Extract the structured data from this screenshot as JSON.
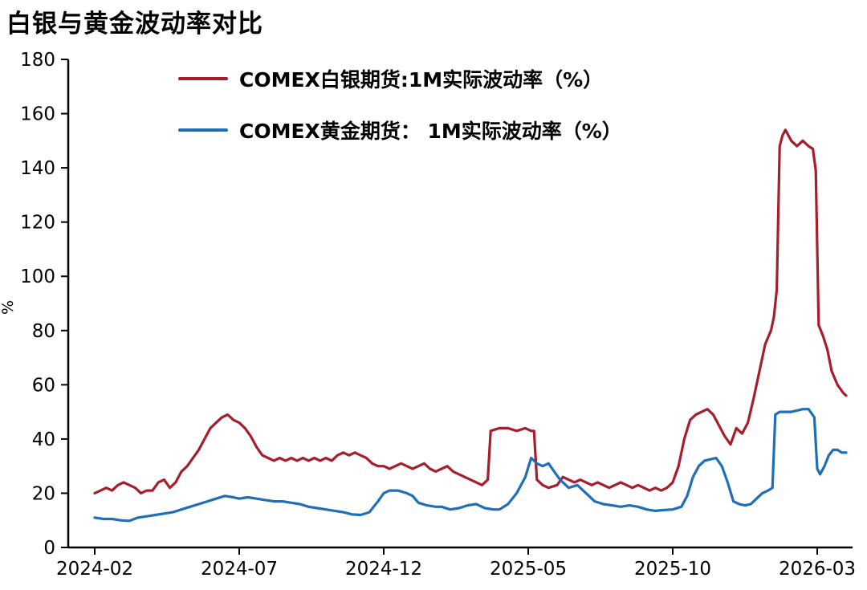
{
  "page": {
    "title": "白银与黄金波动率对比",
    "ylabel": "%"
  },
  "chart_data": {
    "type": "line",
    "title": "白银与黄金波动率对比",
    "xlabel": "",
    "ylabel": "%",
    "ylim": [
      0,
      180
    ],
    "y_ticks": [
      0,
      20,
      40,
      60,
      80,
      100,
      120,
      140,
      160,
      180
    ],
    "x_unit": "months since 2024-02",
    "x_ticks": [
      {
        "m": 0,
        "label": "2024-02"
      },
      {
        "m": 5,
        "label": "2024-07"
      },
      {
        "m": 10,
        "label": "2024-12"
      },
      {
        "m": 15,
        "label": "2025-05"
      },
      {
        "m": 20,
        "label": "2025-10"
      },
      {
        "m": 25,
        "label": "2026-03"
      }
    ],
    "grid": false,
    "legend_position": "top-left-inside",
    "series": [
      {
        "name": "COMEX白银期货:1M实际波动率（%）",
        "color": "#A61E2B",
        "points": [
          [
            0,
            20
          ],
          [
            0.2,
            21
          ],
          [
            0.4,
            22
          ],
          [
            0.6,
            21
          ],
          [
            0.8,
            23
          ],
          [
            1.0,
            24
          ],
          [
            1.2,
            23
          ],
          [
            1.4,
            22
          ],
          [
            1.6,
            20
          ],
          [
            1.8,
            21
          ],
          [
            2.0,
            21
          ],
          [
            2.2,
            24
          ],
          [
            2.4,
            25
          ],
          [
            2.6,
            22
          ],
          [
            2.8,
            24
          ],
          [
            3.0,
            28
          ],
          [
            3.2,
            30
          ],
          [
            3.4,
            33
          ],
          [
            3.6,
            36
          ],
          [
            3.8,
            40
          ],
          [
            4.0,
            44
          ],
          [
            4.2,
            46
          ],
          [
            4.4,
            48
          ],
          [
            4.6,
            49
          ],
          [
            4.8,
            47
          ],
          [
            5.0,
            46
          ],
          [
            5.2,
            44
          ],
          [
            5.4,
            41
          ],
          [
            5.6,
            37
          ],
          [
            5.8,
            34
          ],
          [
            6.0,
            33
          ],
          [
            6.2,
            32
          ],
          [
            6.4,
            33
          ],
          [
            6.6,
            32
          ],
          [
            6.8,
            33
          ],
          [
            7.0,
            32
          ],
          [
            7.2,
            33
          ],
          [
            7.4,
            32
          ],
          [
            7.6,
            33
          ],
          [
            7.8,
            32
          ],
          [
            8.0,
            33
          ],
          [
            8.2,
            32
          ],
          [
            8.4,
            34
          ],
          [
            8.6,
            35
          ],
          [
            8.8,
            34
          ],
          [
            9.0,
            35
          ],
          [
            9.2,
            34
          ],
          [
            9.4,
            33
          ],
          [
            9.6,
            31
          ],
          [
            9.8,
            30
          ],
          [
            10.0,
            30
          ],
          [
            10.2,
            29
          ],
          [
            10.4,
            30
          ],
          [
            10.6,
            31
          ],
          [
            10.8,
            30
          ],
          [
            11.0,
            29
          ],
          [
            11.2,
            30
          ],
          [
            11.4,
            31
          ],
          [
            11.6,
            29
          ],
          [
            11.8,
            28
          ],
          [
            12.0,
            29
          ],
          [
            12.2,
            30
          ],
          [
            12.4,
            28
          ],
          [
            12.6,
            27
          ],
          [
            12.8,
            26
          ],
          [
            13.0,
            25
          ],
          [
            13.2,
            24
          ],
          [
            13.4,
            23
          ],
          [
            13.6,
            25
          ],
          [
            13.7,
            43
          ],
          [
            14.0,
            44
          ],
          [
            14.3,
            44
          ],
          [
            14.6,
            43
          ],
          [
            14.9,
            44
          ],
          [
            15.1,
            43
          ],
          [
            15.2,
            43
          ],
          [
            15.3,
            25
          ],
          [
            15.5,
            23
          ],
          [
            15.7,
            22
          ],
          [
            16.0,
            23
          ],
          [
            16.2,
            26
          ],
          [
            16.4,
            25
          ],
          [
            16.6,
            24
          ],
          [
            16.8,
            25
          ],
          [
            17.0,
            24
          ],
          [
            17.2,
            23
          ],
          [
            17.4,
            24
          ],
          [
            17.6,
            23
          ],
          [
            17.8,
            22
          ],
          [
            18.0,
            23
          ],
          [
            18.2,
            24
          ],
          [
            18.4,
            23
          ],
          [
            18.6,
            22
          ],
          [
            18.8,
            23
          ],
          [
            19.0,
            22
          ],
          [
            19.2,
            21
          ],
          [
            19.4,
            22
          ],
          [
            19.6,
            21
          ],
          [
            19.8,
            22
          ],
          [
            20.0,
            24
          ],
          [
            20.2,
            30
          ],
          [
            20.4,
            40
          ],
          [
            20.6,
            47
          ],
          [
            20.8,
            49
          ],
          [
            21.0,
            50
          ],
          [
            21.2,
            51
          ],
          [
            21.4,
            49
          ],
          [
            21.6,
            45
          ],
          [
            21.8,
            41
          ],
          [
            22.0,
            38
          ],
          [
            22.2,
            44
          ],
          [
            22.4,
            42
          ],
          [
            22.6,
            46
          ],
          [
            22.8,
            55
          ],
          [
            23.0,
            65
          ],
          [
            23.2,
            75
          ],
          [
            23.4,
            80
          ],
          [
            23.5,
            85
          ],
          [
            23.6,
            95
          ],
          [
            23.7,
            148
          ],
          [
            23.8,
            152
          ],
          [
            23.9,
            154
          ],
          [
            24.1,
            150
          ],
          [
            24.3,
            148
          ],
          [
            24.5,
            150
          ],
          [
            24.7,
            148
          ],
          [
            24.85,
            147
          ],
          [
            24.95,
            139
          ],
          [
            25.05,
            82
          ],
          [
            25.2,
            78
          ],
          [
            25.35,
            73
          ],
          [
            25.5,
            65
          ],
          [
            25.7,
            60
          ],
          [
            25.9,
            57
          ],
          [
            26.0,
            56
          ]
        ]
      },
      {
        "name": "COMEX黄金期货： 1M实际波动率（%）",
        "color": "#1F6EB8",
        "points": [
          [
            0,
            11
          ],
          [
            0.3,
            10.5
          ],
          [
            0.6,
            10.5
          ],
          [
            0.9,
            10
          ],
          [
            1.2,
            9.8
          ],
          [
            1.5,
            11
          ],
          [
            1.8,
            11.5
          ],
          [
            2.1,
            12
          ],
          [
            2.4,
            12.5
          ],
          [
            2.7,
            13
          ],
          [
            3.0,
            14
          ],
          [
            3.3,
            15
          ],
          [
            3.6,
            16
          ],
          [
            3.9,
            17
          ],
          [
            4.2,
            18
          ],
          [
            4.5,
            19
          ],
          [
            4.8,
            18.5
          ],
          [
            5.0,
            18
          ],
          [
            5.3,
            18.5
          ],
          [
            5.6,
            18
          ],
          [
            5.9,
            17.5
          ],
          [
            6.2,
            17
          ],
          [
            6.5,
            17
          ],
          [
            6.8,
            16.5
          ],
          [
            7.1,
            16
          ],
          [
            7.4,
            15
          ],
          [
            7.7,
            14.5
          ],
          [
            8.0,
            14
          ],
          [
            8.3,
            13.5
          ],
          [
            8.6,
            13
          ],
          [
            8.9,
            12.2
          ],
          [
            9.2,
            12
          ],
          [
            9.5,
            13
          ],
          [
            9.8,
            17
          ],
          [
            10.0,
            20
          ],
          [
            10.2,
            21
          ],
          [
            10.5,
            21
          ],
          [
            10.8,
            20
          ],
          [
            11.0,
            19
          ],
          [
            11.2,
            16.5
          ],
          [
            11.5,
            15.5
          ],
          [
            11.8,
            15
          ],
          [
            12.0,
            15
          ],
          [
            12.3,
            14
          ],
          [
            12.6,
            14.5
          ],
          [
            12.9,
            15.5
          ],
          [
            13.2,
            16
          ],
          [
            13.5,
            14.5
          ],
          [
            13.8,
            14
          ],
          [
            14.0,
            14
          ],
          [
            14.3,
            16
          ],
          [
            14.6,
            20
          ],
          [
            14.9,
            26
          ],
          [
            15.1,
            33
          ],
          [
            15.3,
            31
          ],
          [
            15.5,
            30
          ],
          [
            15.7,
            31
          ],
          [
            15.9,
            28
          ],
          [
            16.1,
            25
          ],
          [
            16.4,
            22
          ],
          [
            16.7,
            23
          ],
          [
            17.0,
            20
          ],
          [
            17.3,
            17
          ],
          [
            17.6,
            16
          ],
          [
            17.9,
            15.5
          ],
          [
            18.2,
            15
          ],
          [
            18.5,
            15.5
          ],
          [
            18.8,
            15
          ],
          [
            19.1,
            14
          ],
          [
            19.4,
            13.5
          ],
          [
            19.7,
            13.8
          ],
          [
            20.0,
            14
          ],
          [
            20.3,
            15
          ],
          [
            20.5,
            19
          ],
          [
            20.7,
            26
          ],
          [
            20.9,
            30
          ],
          [
            21.1,
            32
          ],
          [
            21.3,
            32.5
          ],
          [
            21.5,
            33
          ],
          [
            21.7,
            30
          ],
          [
            21.9,
            24
          ],
          [
            22.1,
            17
          ],
          [
            22.3,
            16
          ],
          [
            22.5,
            15.5
          ],
          [
            22.7,
            16
          ],
          [
            22.9,
            18
          ],
          [
            23.1,
            20
          ],
          [
            23.3,
            21
          ],
          [
            23.45,
            22
          ],
          [
            23.55,
            49
          ],
          [
            23.7,
            50
          ],
          [
            23.9,
            50
          ],
          [
            24.1,
            50
          ],
          [
            24.3,
            50.5
          ],
          [
            24.5,
            51
          ],
          [
            24.7,
            51
          ],
          [
            24.9,
            48
          ],
          [
            25.0,
            29
          ],
          [
            25.1,
            27
          ],
          [
            25.25,
            30
          ],
          [
            25.4,
            34
          ],
          [
            25.55,
            36
          ],
          [
            25.7,
            36
          ],
          [
            25.85,
            35
          ],
          [
            26.0,
            35
          ]
        ]
      }
    ]
  }
}
